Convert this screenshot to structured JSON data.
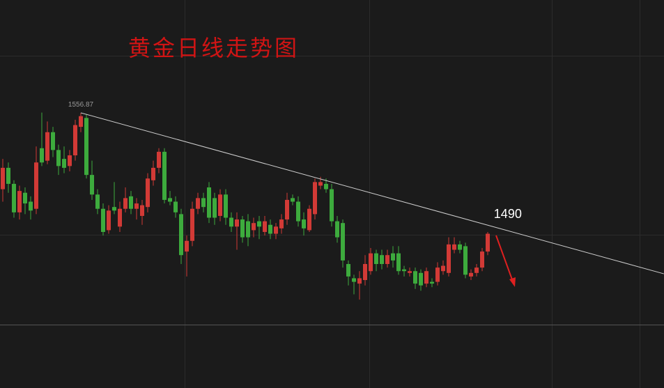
{
  "chart_data": {
    "type": "candlestick",
    "title": "黄金日线走势图",
    "up_color": "#d23a36",
    "down_color": "#3dab3d",
    "ylim": [
      1402.4,
      1620.2
    ],
    "open": [
      1514,
      1526,
      1517,
      1501,
      1512,
      1507,
      1503,
      1537,
      1530,
      1546,
      1536,
      1531,
      1527,
      1533,
      1549,
      1554,
      1522,
      1511,
      1503,
      1491,
      1504,
      1493,
      1503,
      1510,
      1503,
      1499,
      1504,
      1519,
      1526,
      1535,
      1509,
      1507,
      1500,
      1479,
      1485,
      1503,
      1509,
      1515,
      1509,
      1499,
      1511,
      1498,
      1493,
      1497,
      1496,
      1491,
      1496,
      1490,
      1494,
      1489,
      1492,
      1497,
      1509,
      1507,
      1497,
      1491,
      1500,
      1516,
      1517,
      1514,
      1496,
      1495,
      1472,
      1464,
      1461,
      1463,
      1468,
      1478,
      1477,
      1472,
      1478,
      1478,
      1469,
      1467,
      1468,
      1467,
      1461,
      1462,
      1462,
      1468,
      1467,
      1480,
      1483,
      1482,
      1465,
      1467,
      1470,
      1479
    ],
    "high": [
      1531,
      1529,
      1519,
      1516,
      1515,
      1510,
      1538,
      1557,
      1552,
      1549,
      1539,
      1538,
      1536,
      1553,
      1556.87,
      1556,
      1530,
      1514,
      1506,
      1505,
      1518,
      1507,
      1515,
      1513,
      1509,
      1508,
      1523,
      1530,
      1537,
      1537,
      1513,
      1510,
      1503,
      1488,
      1507,
      1512,
      1512,
      1518,
      1512,
      1514,
      1514,
      1501,
      1501,
      1499,
      1500,
      1498,
      1499,
      1499,
      1497,
      1495,
      1500,
      1512,
      1511,
      1510,
      1501,
      1505,
      1520,
      1521,
      1520,
      1517,
      1499,
      1497,
      1474,
      1466,
      1468,
      1477,
      1481,
      1480,
      1480,
      1480,
      1482,
      1482,
      1471,
      1470,
      1470,
      1469,
      1470,
      1464,
      1473,
      1474,
      1487,
      1487,
      1485,
      1484,
      1469,
      1472,
      1481,
      1490
    ],
    "low": [
      1507,
      1512,
      1498,
      1497,
      1500,
      1497,
      1500,
      1527,
      1528,
      1532,
      1522,
      1523,
      1524,
      1530,
      1546,
      1520,
      1508,
      1500,
      1488,
      1489,
      1500,
      1490,
      1501,
      1500,
      1497,
      1494,
      1501,
      1516,
      1523,
      1506,
      1505,
      1498,
      1472,
      1465,
      1482,
      1500,
      1501,
      1495,
      1494,
      1496,
      1494,
      1490,
      1480,
      1484,
      1482,
      1487,
      1486,
      1488,
      1486,
      1486,
      1489,
      1494,
      1505,
      1493,
      1488,
      1490,
      1497,
      1514,
      1512,
      1493,
      1484,
      1470,
      1460,
      1455,
      1452,
      1460,
      1466,
      1468,
      1469,
      1470,
      1470,
      1466,
      1465,
      1465,
      1458,
      1457,
      1459,
      1459,
      1460,
      1466,
      1465,
      1478,
      1478,
      1464,
      1463,
      1465,
      1468,
      1477
    ],
    "close": [
      1526,
      1517,
      1501,
      1513,
      1506,
      1502,
      1529,
      1529,
      1546,
      1536,
      1527,
      1526,
      1533,
      1550,
      1555,
      1522,
      1511,
      1503,
      1490,
      1502,
      1502,
      1503,
      1509,
      1503,
      1506,
      1505,
      1520,
      1526,
      1535,
      1508,
      1507,
      1501,
      1477,
      1485,
      1503,
      1509,
      1504,
      1498,
      1498,
      1511,
      1498,
      1493,
      1497,
      1487,
      1487,
      1495,
      1493,
      1496,
      1489,
      1493,
      1497,
      1508,
      1507,
      1496,
      1492,
      1503,
      1518,
      1518,
      1514,
      1496,
      1487,
      1474,
      1465,
      1462,
      1464,
      1472,
      1478,
      1472,
      1472,
      1477,
      1474,
      1468,
      1468,
      1468,
      1461,
      1460,
      1468,
      1461,
      1470,
      1471,
      1483,
      1483,
      1480,
      1466,
      1467,
      1470,
      1479,
      1489
    ],
    "trendline": {
      "x": [
        14,
        118.6
      ],
      "values": [
        1556.87,
        1466.5
      ],
      "value_labels": [
        "1556.87",
        null
      ],
      "color": "#cfcfcf"
    },
    "annotations": [
      {
        "x": 87.6,
        "value": 1490,
        "label": "1490"
      }
    ]
  }
}
